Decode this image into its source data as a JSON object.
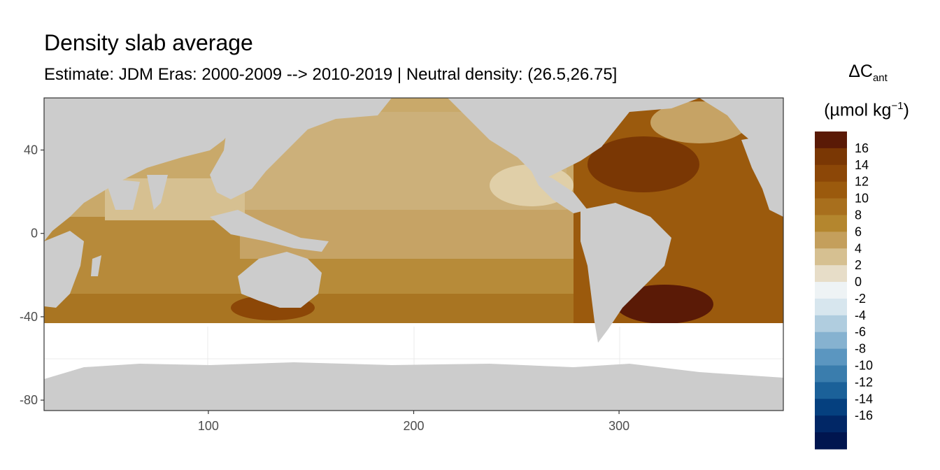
{
  "title": "Density slab average",
  "subtitle": "Estimate: JDM Eras: 2000-2009 --> 2010-2019 | Neutral density: (26.5,26.75]",
  "legend": {
    "title_symbol": "ΔC",
    "title_subscript": "ant",
    "unit_main": "(µmol kg",
    "unit_sup": "−1",
    "unit_close": ")",
    "breaks": [
      "16",
      "14",
      "12",
      "10",
      "8",
      "6",
      "4",
      "2",
      "0",
      "-2",
      "-4",
      "-6",
      "-8",
      "-10",
      "-12",
      "-14",
      "-16"
    ],
    "colors": [
      "#5a1a06",
      "#7a3704",
      "#8c4707",
      "#9b5a0d",
      "#a86f1d",
      "#b4862e",
      "#c49f5c",
      "#d6c091",
      "#e7ddc8",
      "#eef3f5",
      "#d7e6ee",
      "#b0cddf",
      "#86b2d0",
      "#5b96c0",
      "#3a7dad",
      "#1b6199",
      "#05407f",
      "#012766",
      "#00154f"
    ]
  },
  "map": {
    "x_axis": {
      "ticks": [
        100,
        200,
        300
      ],
      "range": [
        20,
        380
      ]
    },
    "y_axis": {
      "ticks": [
        40,
        0,
        -40,
        -80
      ],
      "range": [
        -85,
        65
      ]
    },
    "land_color": "#cccccc",
    "nodata_color": "#ffffff"
  }
}
